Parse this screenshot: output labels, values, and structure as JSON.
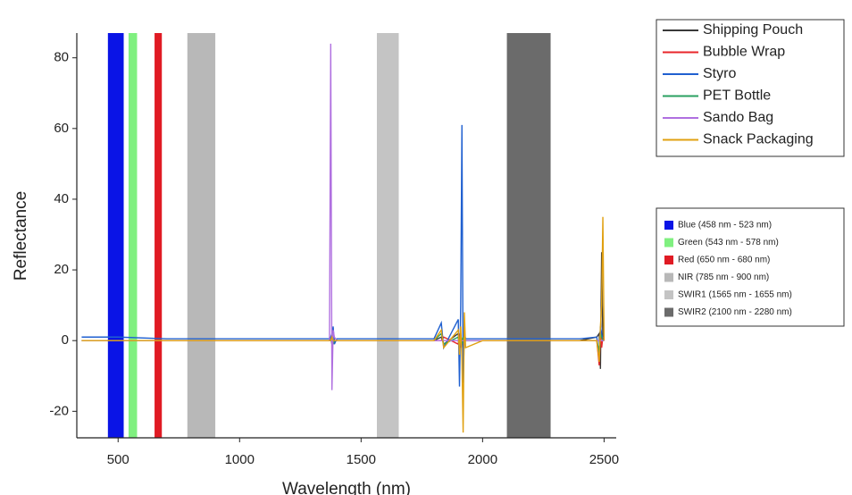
{
  "chart_data": {
    "type": "line",
    "x_label": "Wavelength (nm)",
    "y_label": "Reflectance",
    "xlim": [
      330,
      2550
    ],
    "ylim": [
      -27.5,
      87
    ],
    "xticks": [
      500,
      1000,
      1500,
      2000,
      2500
    ],
    "yticks": [
      -20,
      0,
      20,
      40,
      60,
      80
    ],
    "x": [
      350,
      500,
      700,
      1000,
      1370,
      1375,
      1380,
      1385,
      1390,
      1400,
      1500,
      1800,
      1830,
      1840,
      1900,
      1905,
      1910,
      1915,
      1920,
      1925,
      1930,
      2000,
      2400,
      2470,
      2480,
      2485,
      2490,
      2495,
      2500
    ],
    "series": [
      {
        "name": "Shipping Pouch",
        "color": "#3a3a3a",
        "values": [
          0,
          0,
          0,
          0,
          0,
          1,
          -1,
          2,
          0,
          0,
          0,
          0,
          1,
          -1,
          2,
          -3,
          1,
          0,
          -2,
          1,
          0,
          0,
          0,
          1,
          2,
          -8,
          25,
          0,
          0
        ]
      },
      {
        "name": "Bubble Wrap",
        "color": "#e8262a",
        "values": [
          0,
          0,
          0,
          0,
          0,
          0,
          1,
          -1,
          0,
          0,
          0,
          0,
          0,
          1,
          -1,
          2,
          -2,
          0,
          1,
          0,
          0,
          0,
          0,
          0,
          -7,
          3,
          -2,
          1,
          0
        ]
      },
      {
        "name": "Styro",
        "color": "#2060d0",
        "values": [
          1,
          1,
          0.5,
          0.5,
          0.5,
          1,
          2,
          4,
          -1,
          0.5,
          0.5,
          0.5,
          5,
          -2,
          6,
          -13,
          10,
          61,
          -12,
          2,
          0.5,
          0.5,
          0.5,
          1,
          -5,
          4,
          2,
          0,
          0
        ]
      },
      {
        "name": "PET Bottle",
        "color": "#2aa060",
        "values": [
          0,
          0,
          0,
          0,
          0,
          0,
          1,
          -1,
          0,
          0,
          0,
          0,
          2,
          -1,
          1,
          -2,
          2,
          -1,
          1,
          0,
          0,
          0,
          0,
          0,
          -3,
          2,
          1,
          0,
          0
        ]
      },
      {
        "name": "Sando Bag",
        "color": "#b070e0",
        "values": [
          0,
          0,
          0,
          0,
          0,
          84,
          -14,
          3,
          1,
          0,
          0,
          0,
          0,
          0,
          0,
          0,
          0,
          0,
          0,
          0,
          0,
          0,
          0,
          0,
          0,
          0,
          0,
          0,
          0
        ]
      },
      {
        "name": "Snack Packaging",
        "color": "#e0a010",
        "values": [
          0,
          0,
          0,
          0,
          0,
          0,
          1,
          0,
          0,
          0,
          0,
          0,
          3,
          -2,
          3,
          -4,
          4,
          -5,
          -26,
          8,
          -2,
          0,
          0,
          0,
          -6,
          4,
          10,
          35,
          0
        ]
      }
    ],
    "bands": [
      {
        "label": "Blue (458 nm - 523 nm)",
        "range": [
          458,
          523
        ],
        "color": "#0a14e6"
      },
      {
        "label": "Green (543 nm - 578 nm)",
        "range": [
          543,
          578
        ],
        "color": "#80f080"
      },
      {
        "label": "Red (650 nm - 680 nm)",
        "range": [
          650,
          680
        ],
        "color": "#e01b24"
      },
      {
        "label": "NIR (785 nm - 900 nm)",
        "range": [
          785,
          900
        ],
        "color": "#b8b8b8"
      },
      {
        "label": "SWIR1 (1565 nm - 1655 nm)",
        "range": [
          1565,
          1655
        ],
        "color": "#c4c4c4"
      },
      {
        "label": "SWIR2 (2100 nm - 2280 nm)",
        "range": [
          2100,
          2280
        ],
        "color": "#6b6b6b"
      }
    ]
  }
}
